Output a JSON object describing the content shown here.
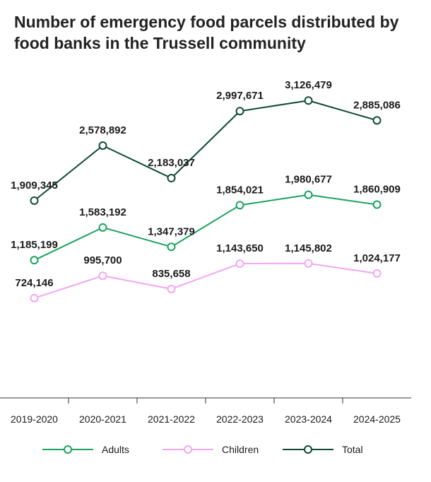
{
  "chart_data": {
    "type": "line",
    "title": "Number of emergency food parcels distributed by food banks in the Trussell community",
    "categories": [
      "2019-2020",
      "2020-2021",
      "2021-2022",
      "2022-2023",
      "2023-2024",
      "2024-2025"
    ],
    "series": [
      {
        "name": "Total",
        "values": [
          1909345,
          2578892,
          2183037,
          2997671,
          3126479,
          2885086
        ],
        "labels": [
          "1,909,345",
          "2,578,892",
          "2,183,037",
          "2,997,671",
          "3,126,479",
          "2,885,086"
        ],
        "color": "#0f4a33"
      },
      {
        "name": "Adults",
        "values": [
          1185199,
          1583192,
          1347379,
          1854021,
          1980677,
          1860909
        ],
        "labels": [
          "1,185,199",
          "1,583,192",
          "1,347,379",
          "1,854,021",
          "1,980,677",
          "1,860,909"
        ],
        "color": "#1ba25e"
      },
      {
        "name": "Children",
        "values": [
          724146,
          995700,
          835658,
          1143650,
          1145802,
          1024177
        ],
        "labels": [
          "724,146",
          "995,700",
          "835,658",
          "1,143,650",
          "1,145,802",
          "1,024,177"
        ],
        "color": "#f2a6f2"
      }
    ],
    "legend": {
      "position": "bottom",
      "items": [
        {
          "name": "Adults",
          "color": "#1ba25e"
        },
        {
          "name": "Children",
          "color": "#f2a6f2"
        },
        {
          "name": "Total",
          "color": "#0f4a33"
        }
      ]
    },
    "grid": false,
    "y_axis_visible": false
  }
}
